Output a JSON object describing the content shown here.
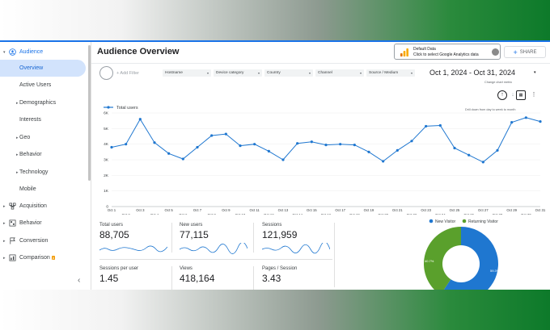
{
  "sidebar": {
    "items": [
      {
        "label": "Audience",
        "icon": "person-icon",
        "caret": "▾"
      },
      {
        "label": "Overview"
      },
      {
        "label": "Active Users"
      },
      {
        "label": "Demographics",
        "caret": "▸"
      },
      {
        "label": "Interests"
      },
      {
        "label": "Geo",
        "caret": "▸"
      },
      {
        "label": "Behavior",
        "caret": "▸"
      },
      {
        "label": "Technology",
        "caret": "▸"
      },
      {
        "label": "Mobile"
      },
      {
        "label": "Acquisition",
        "icon": "acquisition-icon",
        "caret": "▸"
      },
      {
        "label": "Behavior",
        "icon": "behavior-icon",
        "caret": "▸"
      },
      {
        "label": "Conversion",
        "icon": "flag-icon",
        "caret": "▸"
      },
      {
        "label": "Comparison",
        "icon": "comparison-icon",
        "caret": "▸",
        "badge": "β"
      }
    ],
    "collapse_glyph": "‹"
  },
  "header": {
    "title": "Audience Overview",
    "default_data_title": "Default Data",
    "default_data_sub": "Click to select Google Analytics data",
    "share_plus": "+",
    "share_label": "SHARE"
  },
  "filters": {
    "add_filter": "+ Add Filter",
    "dropdowns": [
      "Hostname",
      "Device category",
      "Country",
      "Channel",
      "Source / Medium"
    ],
    "dropdown_arrow": "▾",
    "date_range": "Oct 1, 2024 - Oct 31, 2024",
    "date_arrow": "▾"
  },
  "tools": {
    "change_metric_tip": "Change chart metric",
    "drill_tip": "Drill down from day to week to month",
    "up_glyph": "↑",
    "down_glyph": "↓",
    "chart_glyph": "▦",
    "more_glyph": "⋮"
  },
  "chart_data": {
    "type": "line",
    "legend": "Total users",
    "color": "#1f77d0",
    "ylim": [
      0,
      6000
    ],
    "yticks": [
      "0",
      "1K",
      "2K",
      "3K",
      "4K",
      "5K",
      "6K"
    ],
    "x_labels_top": [
      "Oct 1",
      "Oct 3",
      "Oct 5",
      "Oct 7",
      "Oct 9",
      "Oct 11",
      "Oct 13",
      "Oct 15",
      "Oct 17",
      "Oct 19",
      "Oct 21",
      "Oct 23",
      "Oct 25",
      "Oct 27",
      "Oct 29",
      "Oct 31"
    ],
    "x_labels_bottom": [
      "Oct 2",
      "Oct 4",
      "Oct 6",
      "Oct 8",
      "Oct 10",
      "Oct 12",
      "Oct 14",
      "Oct 16",
      "Oct 18",
      "Oct 20",
      "Oct 22",
      "Oct 24",
      "Oct 26",
      "Oct 28",
      "Oct 30"
    ],
    "values": [
      3800,
      4000,
      5600,
      4100,
      3400,
      3050,
      3800,
      4550,
      4650,
      3900,
      4000,
      3550,
      3000,
      4050,
      4150,
      3950,
      4000,
      3950,
      3500,
      2900,
      3600,
      4200,
      5150,
      5200,
      3750,
      3300,
      2850,
      3600,
      5400,
      5700,
      5450
    ]
  },
  "metrics": [
    {
      "label": "Total users",
      "value": "88,705"
    },
    {
      "label": "New users",
      "value": "77,115"
    },
    {
      "label": "Sessions",
      "value": "121,959"
    },
    {
      "label": "Sessions per user",
      "value": "1.45"
    },
    {
      "label": "Views",
      "value": "418,164"
    },
    {
      "label": "Pages / Session",
      "value": "3.43"
    }
  ],
  "pie": {
    "legend": [
      {
        "label": "New Visitor",
        "color": "#1f77d0"
      },
      {
        "label": "Returning Visitor",
        "color": "#5aa02c"
      }
    ],
    "new_pct": 0.593,
    "new_label": "59.3%",
    "returning_label": "40.7%"
  }
}
